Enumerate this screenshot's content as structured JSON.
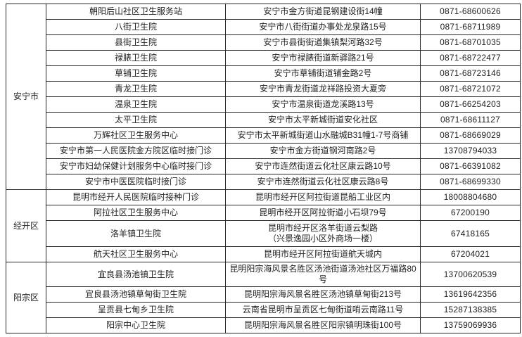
{
  "table": {
    "description_columns": [
      "district",
      "facility_name",
      "address",
      "phone"
    ],
    "sections": [
      {
        "district": "安宁市",
        "rows": [
          {
            "name": "朝阳后山社区卫生服务站",
            "address": "安宁市金方街道昆钢建设街14幢",
            "phone": "0871-68600626"
          },
          {
            "name": "八街卫生院",
            "address": "安宁市八街街道办事处龙泉路15号",
            "phone": "0871-68711989"
          },
          {
            "name": "县街卫生院",
            "address": "安宁市县街街道集镇梨河路32号",
            "phone": "0871-68701035"
          },
          {
            "name": "禄脿卫生院",
            "address": "安宁市禄脿街道新驿路21号",
            "phone": "0871-68722477"
          },
          {
            "name": "草铺卫生院",
            "address": "安宁市草铺街道铺金路2号",
            "phone": "0871-68723146"
          },
          {
            "name": "青龙卫生院",
            "address": "安宁市青龙街道龙祥路投资大夏旁",
            "phone": "0871-68721072"
          },
          {
            "name": "温泉卫生院",
            "address": "安宁市温泉街道龙溪路13号",
            "phone": "0871-66254203"
          },
          {
            "name": "太平卫生院",
            "address": "安宁市太平新城街道安化社区",
            "phone": "0871-68611127"
          },
          {
            "name": "万辉社区卫生服务中心",
            "address": "安宁市太平新城街道山水融城B31幢1-7号商铺",
            "phone": "0871-68669029"
          },
          {
            "name": "安宁市第一人民医院金方院区临时接门诊",
            "address": "安宁市金方街道钢河南路2号",
            "phone": "13708794033"
          },
          {
            "name": "安宁市妇幼保健计划服务中心临时接门诊",
            "address": "安宁市连然街道云化社区康云路10号",
            "phone": "0871-66391082"
          },
          {
            "name": "安宁市中医医院临时接门诊",
            "address": "安宁市连然街道云化社区康云路8号",
            "phone": "0871-68699330"
          }
        ]
      },
      {
        "district": "经开区",
        "rows": [
          {
            "name": "昆明市经开人民医院临时接种门诊",
            "address": "昆明市经开区阿拉街道昆船工业区内",
            "phone": "18008804680"
          },
          {
            "name": "阿拉社区卫生服务中心",
            "address": "昆明市经开区阿拉街道小石坝79号",
            "phone": "67200190"
          },
          {
            "name": "洛羊镇卫生院",
            "address": "昆明市经开区洛羊街道云梨路",
            "address2": "（兴景逸园小区外商场一楼）",
            "phone": "67418165"
          },
          {
            "name": "航天社区卫生服务中心",
            "address": "昆明市经开区阿拉街道航天城内",
            "phone": "67204021"
          }
        ]
      },
      {
        "district": "阳宗区",
        "rows": [
          {
            "name": "宜良县汤池镇卫生院",
            "address": "昆明阳宗海风景名胜区汤池街道汤池社区万福路80号",
            "phone": "13700620539"
          },
          {
            "name": "宜良县汤池镇草甸街卫生院",
            "address": "昆明阳宗海风景名胜区汤池镇草甸街213号",
            "phone": "13619642356"
          },
          {
            "name": "呈贡县七甸乡卫生院",
            "address": "云南省昆明市呈贡区七甸街道哨云南路11号",
            "phone": "15287138385"
          },
          {
            "name": "阳宗中心卫生院",
            "address": "昆明阳宗海风景名胜区阳宗镇明珠街100号",
            "phone": "13759069936"
          }
        ]
      }
    ]
  }
}
